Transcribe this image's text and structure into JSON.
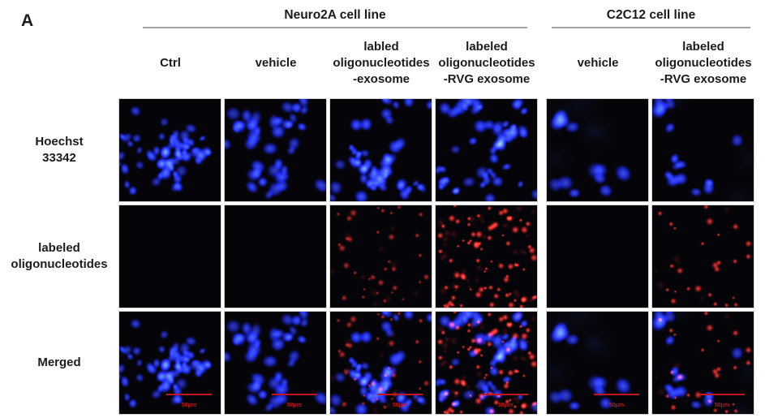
{
  "figure": {
    "panel_label": "A",
    "groups": [
      {
        "label": "Neuro2A cell line"
      },
      {
        "label": "C2C12 cell line"
      }
    ],
    "column_headers": [
      "Ctrl",
      "vehicle",
      "labled\noligonucleotides\n-exosome",
      "labeled\noligonucleotides\n-RVG exosome",
      "vehicle",
      "labeled\noligonucleotides\n-RVG exosome"
    ],
    "row_labels": [
      "Hoechst\n33342",
      "labeled\noligonucleotides",
      "Merged"
    ],
    "scale_bar_label": "50μm"
  },
  "colors": {
    "background": "#ffffff",
    "text": "#1b1b1b",
    "header_line": "#a3a3a3",
    "micrograph_bg": "#050509",
    "nucleus_blue": "#2a3cf0",
    "signal_red": "#e82020",
    "scale_bar_red": "#c01818"
  },
  "micrographs": {
    "row_types": [
      "hoechst",
      "oligo",
      "merged"
    ],
    "columns": [
      {
        "id": "neuro2a-ctrl",
        "description": "dense blue nuclei, no red signal",
        "nuclei": {
          "seed": 11,
          "count": 64,
          "rmin": 3.6,
          "rmax": 6.6,
          "clusters": 6
        }
      },
      {
        "id": "neuro2a-vehicle",
        "description": "medium density blue nuclei, no red signal",
        "nuclei": {
          "seed": 22,
          "count": 40,
          "rmin": 4.6,
          "rmax": 8.2,
          "clusters": 5
        }
      },
      {
        "id": "neuro2a-oligo-exosome",
        "description": "dense blue nuclei, sparse faint red puncta",
        "nuclei": {
          "seed": 33,
          "count": 56,
          "rmin": 3.6,
          "rmax": 7.0,
          "clusters": 6
        },
        "dots": {
          "seed": 133,
          "bright": 34,
          "dim": 10,
          "alpha": 0.7
        }
      },
      {
        "id": "neuro2a-oligo-rvg-exosome",
        "description": "dense blue nuclei, abundant bright red puncta",
        "nuclei": {
          "seed": 44,
          "count": 58,
          "rmin": 3.6,
          "rmax": 7.0,
          "clusters": 6
        },
        "dots": {
          "seed": 144,
          "bright": 78,
          "dim": 34,
          "alpha": 1.0
        }
      },
      {
        "id": "c2c12-vehicle",
        "description": "sparse large blue nuclei, no red signal",
        "nuclei": {
          "seed": 55,
          "count": 13,
          "rmin": 6.0,
          "rmax": 9.0,
          "clusters": 3,
          "wisps": 5
        }
      },
      {
        "id": "c2c12-oligo-rvg-exosome",
        "description": "sparse clustered blue nuclei, scattered small red puncta",
        "nuclei": {
          "seed": 66,
          "count": 16,
          "rmin": 5.0,
          "rmax": 8.5,
          "clusters": 3,
          "wisps": 4
        },
        "dots": {
          "seed": 166,
          "bright": 26,
          "dim": 5,
          "alpha": 0.9
        }
      }
    ]
  }
}
